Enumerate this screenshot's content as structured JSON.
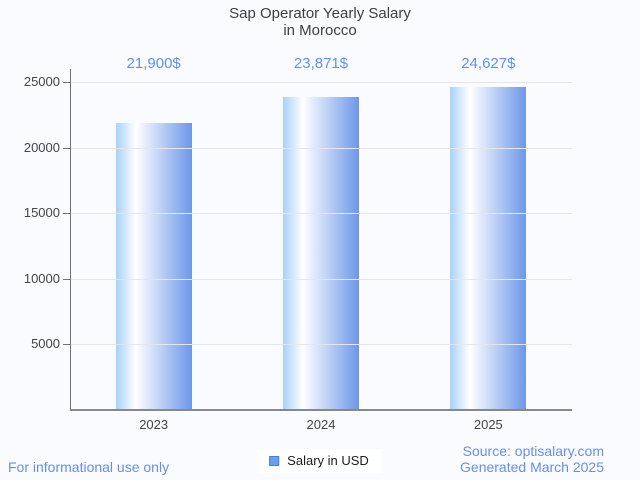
{
  "title": {
    "line1": "Sap Operator Yearly Salary",
    "line2": "in Morocco"
  },
  "legend": {
    "label": "Salary in USD",
    "swatch_icon": "square-icon",
    "swatch_color": "#6d9eeb"
  },
  "footer": {
    "disclaimer": "For informational use only",
    "source_line1": "Source: optisalary.com",
    "source_line2": "Generated March 2025"
  },
  "colors": {
    "background": "#fafbfe",
    "annotation_blue": "#6190ec",
    "footer_blue": "#6a8ee8",
    "title_text": "#3d3f42",
    "axis_label_text": "#424549",
    "gridline": "#e4e6eb",
    "axis_line": "#6e7277",
    "bar_gradient_left": "#a7d2f9",
    "bar_gradient_mid": "#ffffff",
    "bar_gradient_right": "#6d97e8"
  },
  "chart_data": {
    "type": "bar",
    "title": "Sap Operator Yearly Salary in Morocco",
    "categories": [
      "2023",
      "2024",
      "2025"
    ],
    "series": [
      {
        "name": "Salary in USD",
        "values": [
          21900,
          23871,
          24627
        ]
      }
    ],
    "annotations": [
      "21,900$",
      "23,871$",
      "24,627$"
    ],
    "xlabel": "",
    "ylabel": "",
    "ylim": [
      0,
      26000
    ],
    "yticks": [
      5000,
      10000,
      15000,
      20000,
      25000
    ],
    "grid": true,
    "legend_position": "bottom-center"
  }
}
